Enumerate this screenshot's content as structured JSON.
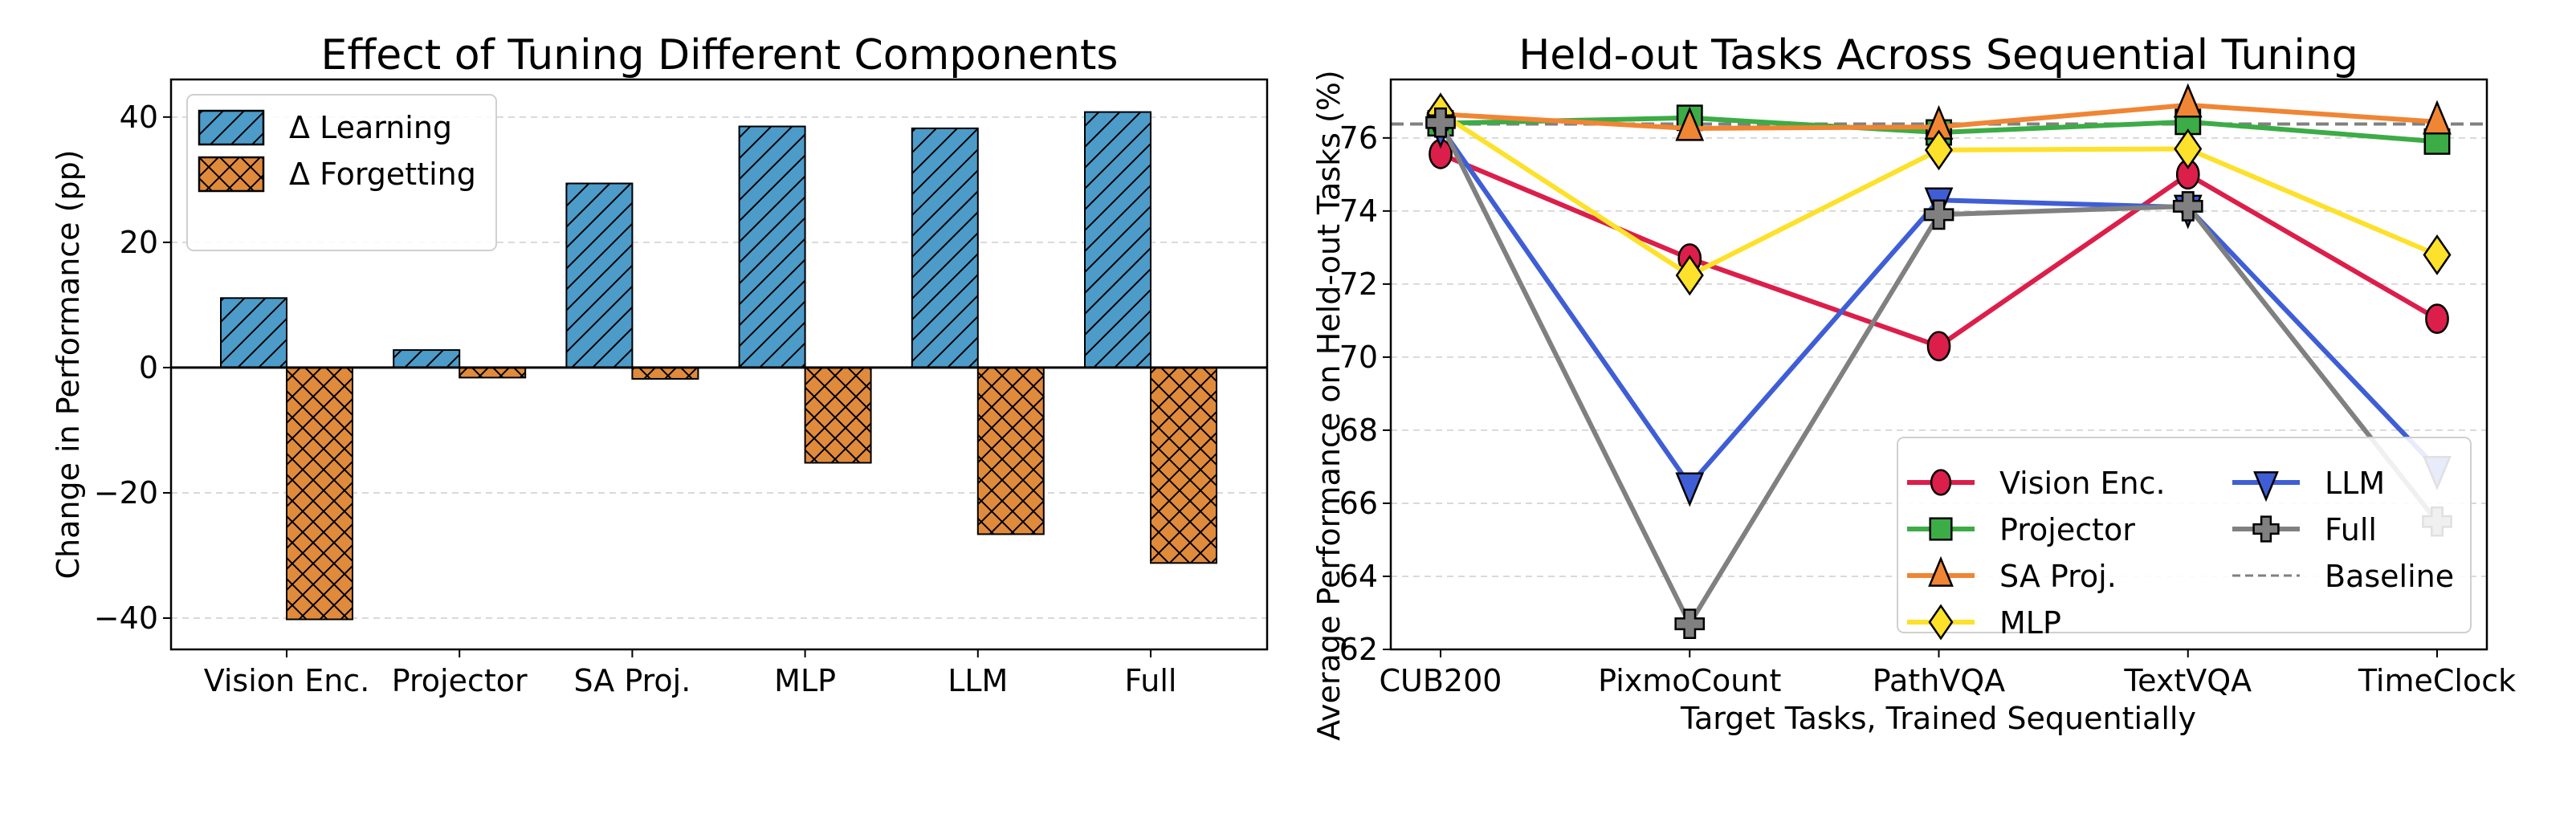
{
  "chart_data": [
    {
      "type": "bar",
      "title": "Effect of Tuning Different Components",
      "xlabel": "",
      "ylabel": "Change in Performance (pp)",
      "ylim": [
        -45,
        46
      ],
      "yticks": [
        -40,
        -20,
        0,
        20,
        40
      ],
      "ytick_labels": [
        "−40",
        "−20",
        "0",
        "20",
        "40"
      ],
      "grid": "y dashed",
      "legend_position": "top-left",
      "categories": [
        "Vision Enc.",
        "Projector",
        "SA Proj.",
        "MLP",
        "LLM",
        "Full"
      ],
      "series": [
        {
          "name": "Δ Learning",
          "color": "#4c9bc9",
          "hatch": "diagonal",
          "values": [
            11.1,
            2.8,
            29.4,
            38.5,
            38.2,
            40.8
          ]
        },
        {
          "name": "Δ Forgetting",
          "color": "#e08a3c",
          "hatch": "crosshatch",
          "values": [
            -40.2,
            -1.6,
            -1.8,
            -15.2,
            -26.6,
            -31.2
          ]
        }
      ]
    },
    {
      "type": "line",
      "title": "Held-out Tasks Across Sequential Tuning",
      "xlabel": "Target Tasks, Trained Sequentially",
      "ylabel": "Average Performance on Held-out Tasks (%)",
      "ylim": [
        62,
        77.6
      ],
      "yticks": [
        62,
        64,
        66,
        68,
        70,
        72,
        74,
        76
      ],
      "ytick_labels": [
        "62",
        "64",
        "66",
        "68",
        "70",
        "72",
        "74",
        "76"
      ],
      "grid": "y dashed",
      "legend_position": "bottom-right",
      "categories": [
        "CUB200",
        "PixmoCount",
        "PathVQA",
        "TextVQA",
        "TimeClock"
      ],
      "baseline": {
        "name": "Baseline",
        "value": 76.38,
        "color": "#808080"
      },
      "series": [
        {
          "name": "Vision Enc.",
          "color": "#dc1e4a",
          "marker": "circle",
          "values": [
            75.56,
            72.7,
            70.3,
            75.0,
            71.05
          ]
        },
        {
          "name": "Projector",
          "color": "#3cac46",
          "marker": "square",
          "values": [
            76.4,
            76.55,
            76.15,
            76.44,
            75.9
          ]
        },
        {
          "name": "SA Proj.",
          "color": "#f08534",
          "marker": "triangle-up",
          "values": [
            76.65,
            76.26,
            76.3,
            76.9,
            76.44
          ]
        },
        {
          "name": "MLP",
          "color": "#fde12a",
          "marker": "diamond",
          "values": [
            76.68,
            72.24,
            75.67,
            75.7,
            72.8
          ]
        },
        {
          "name": "LLM",
          "color": "#3f5ed6",
          "marker": "triangle-down",
          "values": [
            76.3,
            66.5,
            74.3,
            74.1,
            66.95
          ]
        },
        {
          "name": "Full",
          "color": "#808080",
          "marker": "plus",
          "values": [
            76.42,
            62.7,
            73.9,
            74.13,
            65.5
          ]
        }
      ]
    }
  ]
}
